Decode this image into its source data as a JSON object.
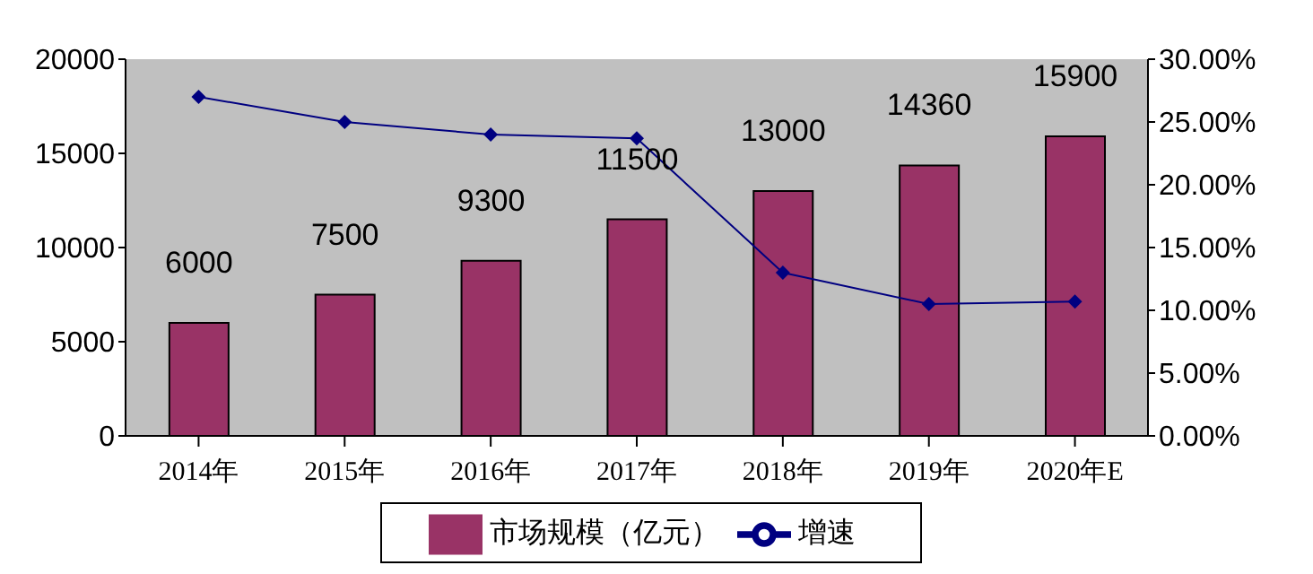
{
  "chart_data": {
    "type": "bar",
    "categories": [
      "2014年",
      "2015年",
      "2016年",
      "2017年",
      "2018年",
      "2019年",
      "2020年E"
    ],
    "series": [
      {
        "name": "市场规模（亿元）",
        "color": "#993366",
        "values": [
          6000,
          7500,
          9300,
          11500,
          13000,
          14360,
          15900
        ],
        "value_labels": [
          "6000",
          "7500",
          "9300",
          "11500",
          "13000",
          "14360",
          "15900"
        ]
      },
      {
        "name": "增速",
        "type": "line",
        "axis": "y2",
        "color": "#000080",
        "marker": "diamond",
        "values": [
          27,
          25,
          24,
          23.7,
          13,
          10.5,
          10.7
        ]
      }
    ],
    "ylim": [
      0,
      20000
    ],
    "yticks": [
      0,
      5000,
      10000,
      15000,
      20000
    ],
    "y2lim": [
      0,
      30
    ],
    "y2ticks": [
      {
        "value": 0,
        "label": "0.00%"
      },
      {
        "value": 5,
        "label": "5.00%"
      },
      {
        "value": 10,
        "label": "10.00%"
      },
      {
        "value": 15,
        "label": "15.00%"
      },
      {
        "value": 20,
        "label": "20.00%"
      },
      {
        "value": 25,
        "label": "25.00%"
      },
      {
        "value": 30,
        "label": "30.00%"
      }
    ],
    "legend": "bottom"
  }
}
